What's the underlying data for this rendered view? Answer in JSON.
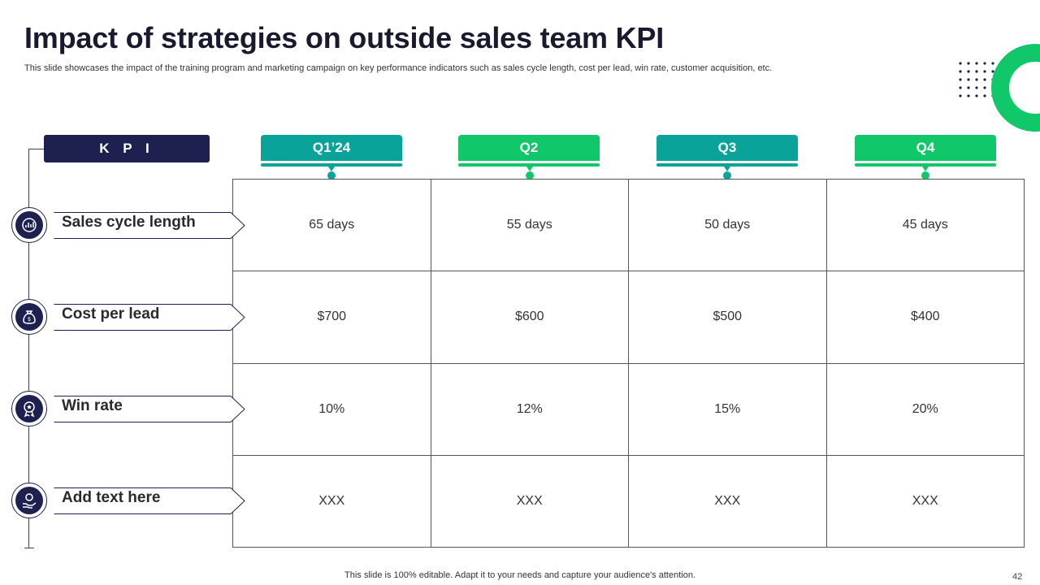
{
  "slide": {
    "title": "Impact of strategies on outside sales team KPI",
    "subtitle": "This slide showcases the impact of the training program and marketing campaign on key performance indicators such as sales cycle length, cost per lead, win rate, customer acquisition, etc.",
    "footer": "This slide is 100% editable. Adapt it to your needs and capture your audience's attention.",
    "page_number": "42"
  },
  "colors": {
    "navy": "#1e2150",
    "teal": "#0aa39a",
    "green": "#10c86a"
  },
  "table": {
    "kpi_header": "K P I",
    "quarters": [
      "Q1’24",
      "Q2",
      "Q3",
      "Q4"
    ],
    "rows": [
      {
        "label": "Sales cycle length",
        "icon": "sales-cycle-icon",
        "values": [
          "65 days",
          "55 days",
          "50 days",
          "45 days"
        ]
      },
      {
        "label": "Cost per lead",
        "icon": "money-bag-icon",
        "values": [
          "$700",
          "$600",
          "$500",
          "$400"
        ]
      },
      {
        "label": "Win rate",
        "icon": "award-badge-icon",
        "values": [
          "10%",
          "12%",
          "15%",
          "20%"
        ]
      },
      {
        "label": "Add text here",
        "icon": "hand-money-icon",
        "values": [
          "XXX",
          "XXX",
          "XXX",
          "XXX"
        ]
      }
    ]
  }
}
